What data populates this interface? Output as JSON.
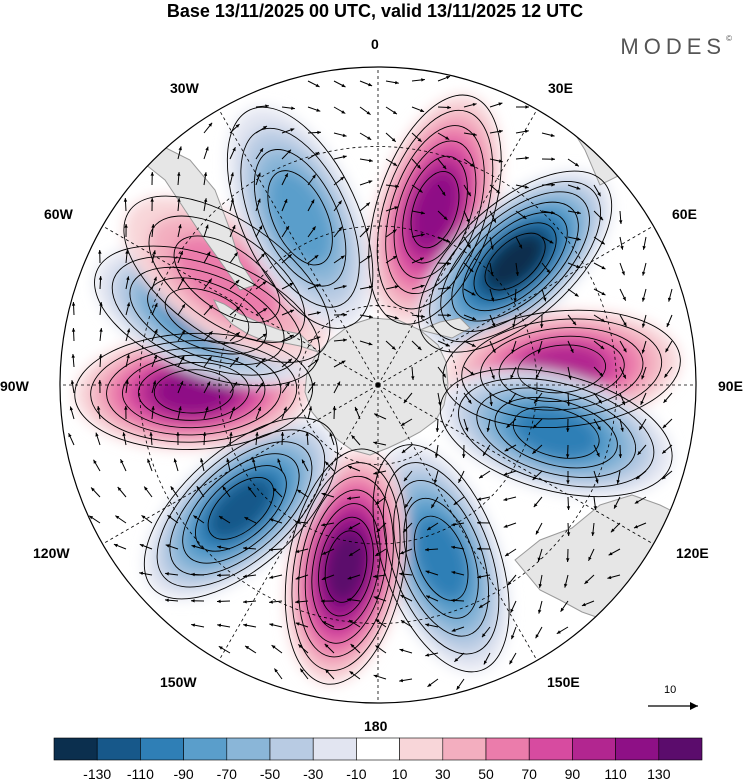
{
  "header": {
    "title": "Base 13/11/2025 00 UTC, valid 13/11/2025 12 UTC",
    "brand": "MODES",
    "brand_mark": "©"
  },
  "map": {
    "projection": "south polar stereographic",
    "longitude_labels": {
      "top": "0",
      "top_right": "30E",
      "right_upper": "60E",
      "right": "90E",
      "right_lower": "120E",
      "bottom_right": "150E",
      "bottom": "180",
      "bottom_left": "150W",
      "left_lower": "120W",
      "left": "90W",
      "left_upper": "60W",
      "top_left": "30W"
    },
    "vector_reference": "10",
    "anomalies": [
      {
        "lon": 18,
        "value": 110
      },
      {
        "lon": 48,
        "value": -130
      },
      {
        "lon": 85,
        "value": 90
      },
      {
        "lon": 105,
        "value": -90
      },
      {
        "lon": 160,
        "value": -90
      },
      {
        "lon": 190,
        "value": 130
      },
      {
        "lon": 228,
        "value": -110
      },
      {
        "lon": 268,
        "value": 110
      },
      {
        "lon": 292,
        "value": -90
      },
      {
        "lon": 305,
        "value": 50
      },
      {
        "lon": 335,
        "value": -70
      }
    ]
  },
  "colorbar": {
    "labels": [
      "-130",
      "-110",
      "-90",
      "-70",
      "-50",
      "-30",
      "-10",
      "10",
      "30",
      "50",
      "70",
      "90",
      "110",
      "130"
    ],
    "colors": [
      "#0b2f4e",
      "#17588a",
      "#2f7fb6",
      "#5a9ecb",
      "#8ab6d8",
      "#b8cbe3",
      "#e2e5f1",
      "#ffffff",
      "#f8d6d9",
      "#f3aebf",
      "#eb7cab",
      "#d74ba0",
      "#b22690",
      "#8e1086",
      "#5b0c6c"
    ]
  }
}
